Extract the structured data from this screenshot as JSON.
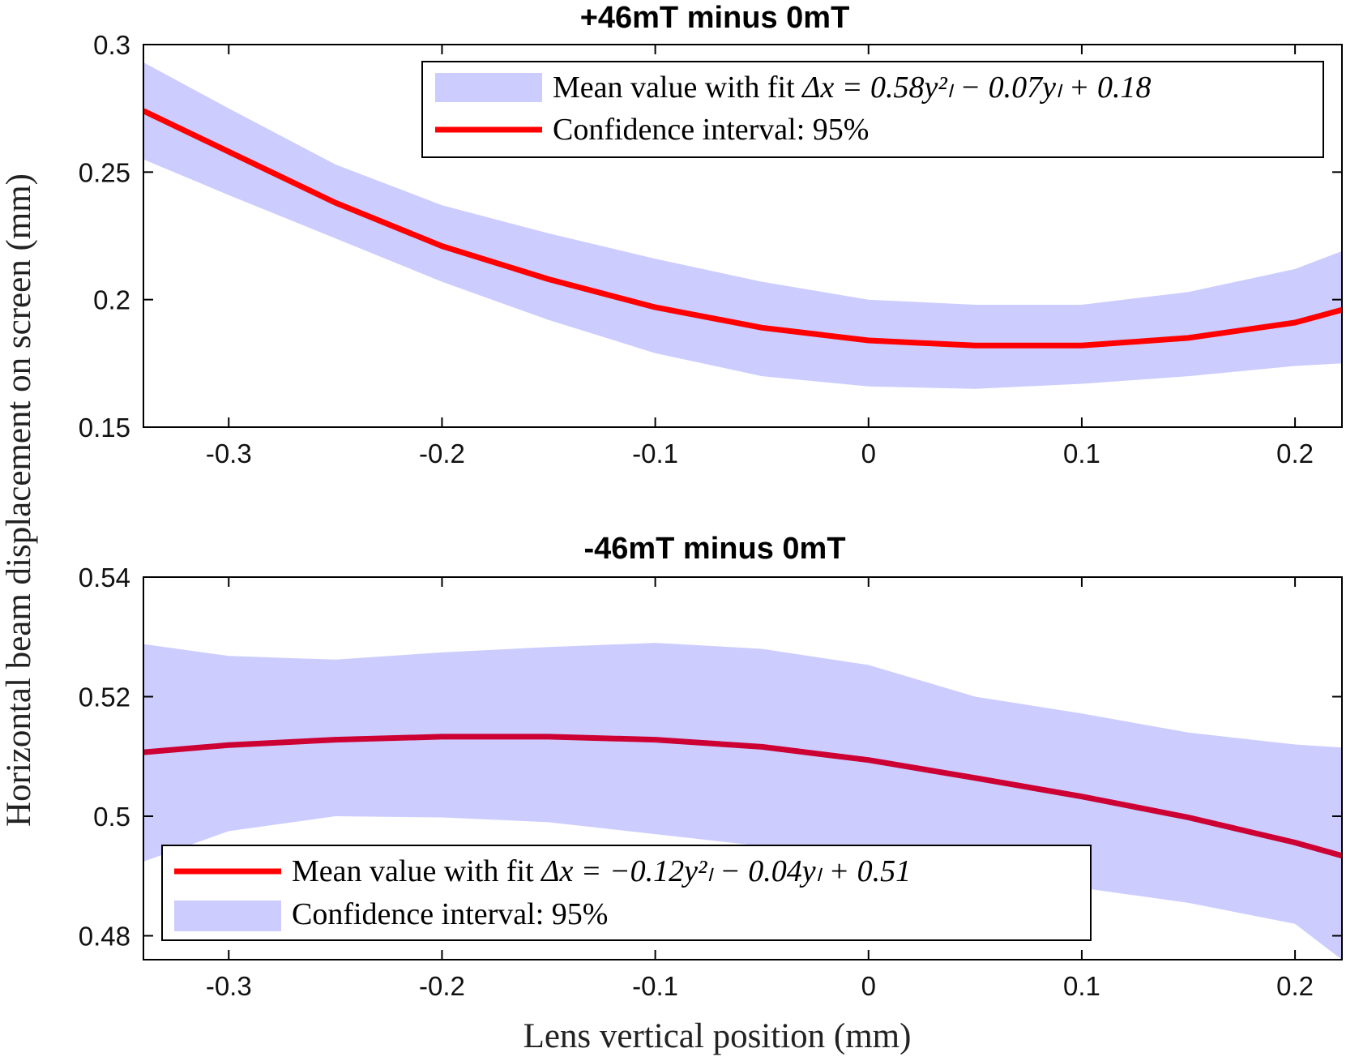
{
  "figure": {
    "ylabel": "Horizontal beam displacement on screen (mm)",
    "xlabel": "Lens vertical position (mm)"
  },
  "chart_data": [
    {
      "type": "line",
      "title": "+46mT minus 0mT",
      "xlabel": "",
      "ylabel": "Horizontal beam displacement on screen (mm)",
      "xlim": [
        -0.34,
        0.222
      ],
      "ylim": [
        0.15,
        0.3
      ],
      "xticks": [
        -0.3,
        -0.2,
        -0.1,
        0,
        0.1,
        0.2
      ],
      "xtick_labels": [
        "-0.3",
        "-0.2",
        "-0.1",
        "0",
        "0.1",
        "0.2"
      ],
      "yticks": [
        0.15,
        0.2,
        0.25,
        0.3
      ],
      "ytick_labels": [
        "0.15",
        "0.2",
        "0.25",
        "0.3"
      ],
      "legend_location": "top-right",
      "legend": [
        {
          "kind": "band",
          "label_prefix": "Mean value with fit ",
          "label_math": "Δx = 0.58y²ₗ − 0.07yₗ + 0.18"
        },
        {
          "kind": "line",
          "label_prefix": "Confidence interval: 95%",
          "label_math": ""
        }
      ],
      "series": [
        {
          "name": "fit",
          "color": "#ff0000",
          "x": [
            -0.34,
            -0.3,
            -0.25,
            -0.2,
            -0.15,
            -0.1,
            -0.05,
            0.0,
            0.05,
            0.1,
            0.15,
            0.2,
            0.222
          ],
          "values": [
            0.274,
            0.258,
            0.238,
            0.221,
            0.208,
            0.197,
            0.189,
            0.184,
            0.182,
            0.182,
            0.185,
            0.191,
            0.196
          ]
        }
      ],
      "band": {
        "name": "confidence interval",
        "color": "#ccccff",
        "x": [
          -0.34,
          -0.3,
          -0.25,
          -0.2,
          -0.15,
          -0.1,
          -0.05,
          0.0,
          0.05,
          0.1,
          0.15,
          0.2,
          0.222
        ],
        "upper": [
          0.293,
          0.275,
          0.253,
          0.237,
          0.226,
          0.216,
          0.207,
          0.2,
          0.198,
          0.198,
          0.203,
          0.212,
          0.219
        ],
        "lower": [
          0.255,
          0.241,
          0.224,
          0.207,
          0.192,
          0.179,
          0.17,
          0.166,
          0.165,
          0.167,
          0.17,
          0.174,
          0.175
        ]
      }
    },
    {
      "type": "line",
      "title": "-46mT minus 0mT",
      "xlabel": "Lens vertical position (mm)",
      "ylabel": "Horizontal beam displacement on screen (mm)",
      "xlim": [
        -0.34,
        0.222
      ],
      "ylim": [
        0.476,
        0.54
      ],
      "xticks": [
        -0.3,
        -0.2,
        -0.1,
        0,
        0.1,
        0.2
      ],
      "xtick_labels": [
        "-0.3",
        "-0.2",
        "-0.1",
        "0",
        "0.1",
        "0.2"
      ],
      "yticks": [
        0.48,
        0.5,
        0.52,
        0.54
      ],
      "ytick_labels": [
        "0.48",
        "0.5",
        "0.52",
        "0.54"
      ],
      "legend_location": "bottom-left",
      "legend": [
        {
          "kind": "line",
          "label_prefix": "Mean value with fit ",
          "label_math": "Δx = −0.12y²ₗ − 0.04yₗ + 0.51"
        },
        {
          "kind": "band",
          "label_prefix": "Confidence interval: 95%",
          "label_math": ""
        }
      ],
      "series": [
        {
          "name": "fit",
          "color": "#cc0033",
          "x": [
            -0.34,
            -0.3,
            -0.25,
            -0.2,
            -0.15,
            -0.1,
            -0.05,
            0.0,
            0.05,
            0.1,
            0.15,
            0.2,
            0.222
          ],
          "values": [
            0.5107,
            0.5119,
            0.5128,
            0.5133,
            0.5133,
            0.5128,
            0.5116,
            0.5094,
            0.5064,
            0.5033,
            0.4998,
            0.4956,
            0.4934
          ]
        }
      ],
      "band": {
        "name": "confidence interval",
        "color": "#ccccff",
        "x": [
          -0.34,
          -0.3,
          -0.25,
          -0.2,
          -0.15,
          -0.1,
          -0.05,
          0.0,
          0.05,
          0.1,
          0.15,
          0.2,
          0.222
        ],
        "upper": [
          0.5288,
          0.5268,
          0.5262,
          0.5274,
          0.5283,
          0.529,
          0.528,
          0.5253,
          0.52,
          0.5172,
          0.514,
          0.512,
          0.5115
        ],
        "lower": [
          0.4924,
          0.4975,
          0.5,
          0.4998,
          0.499,
          0.497,
          0.495,
          0.4925,
          0.4895,
          0.488,
          0.4855,
          0.482,
          0.476
        ]
      }
    }
  ]
}
